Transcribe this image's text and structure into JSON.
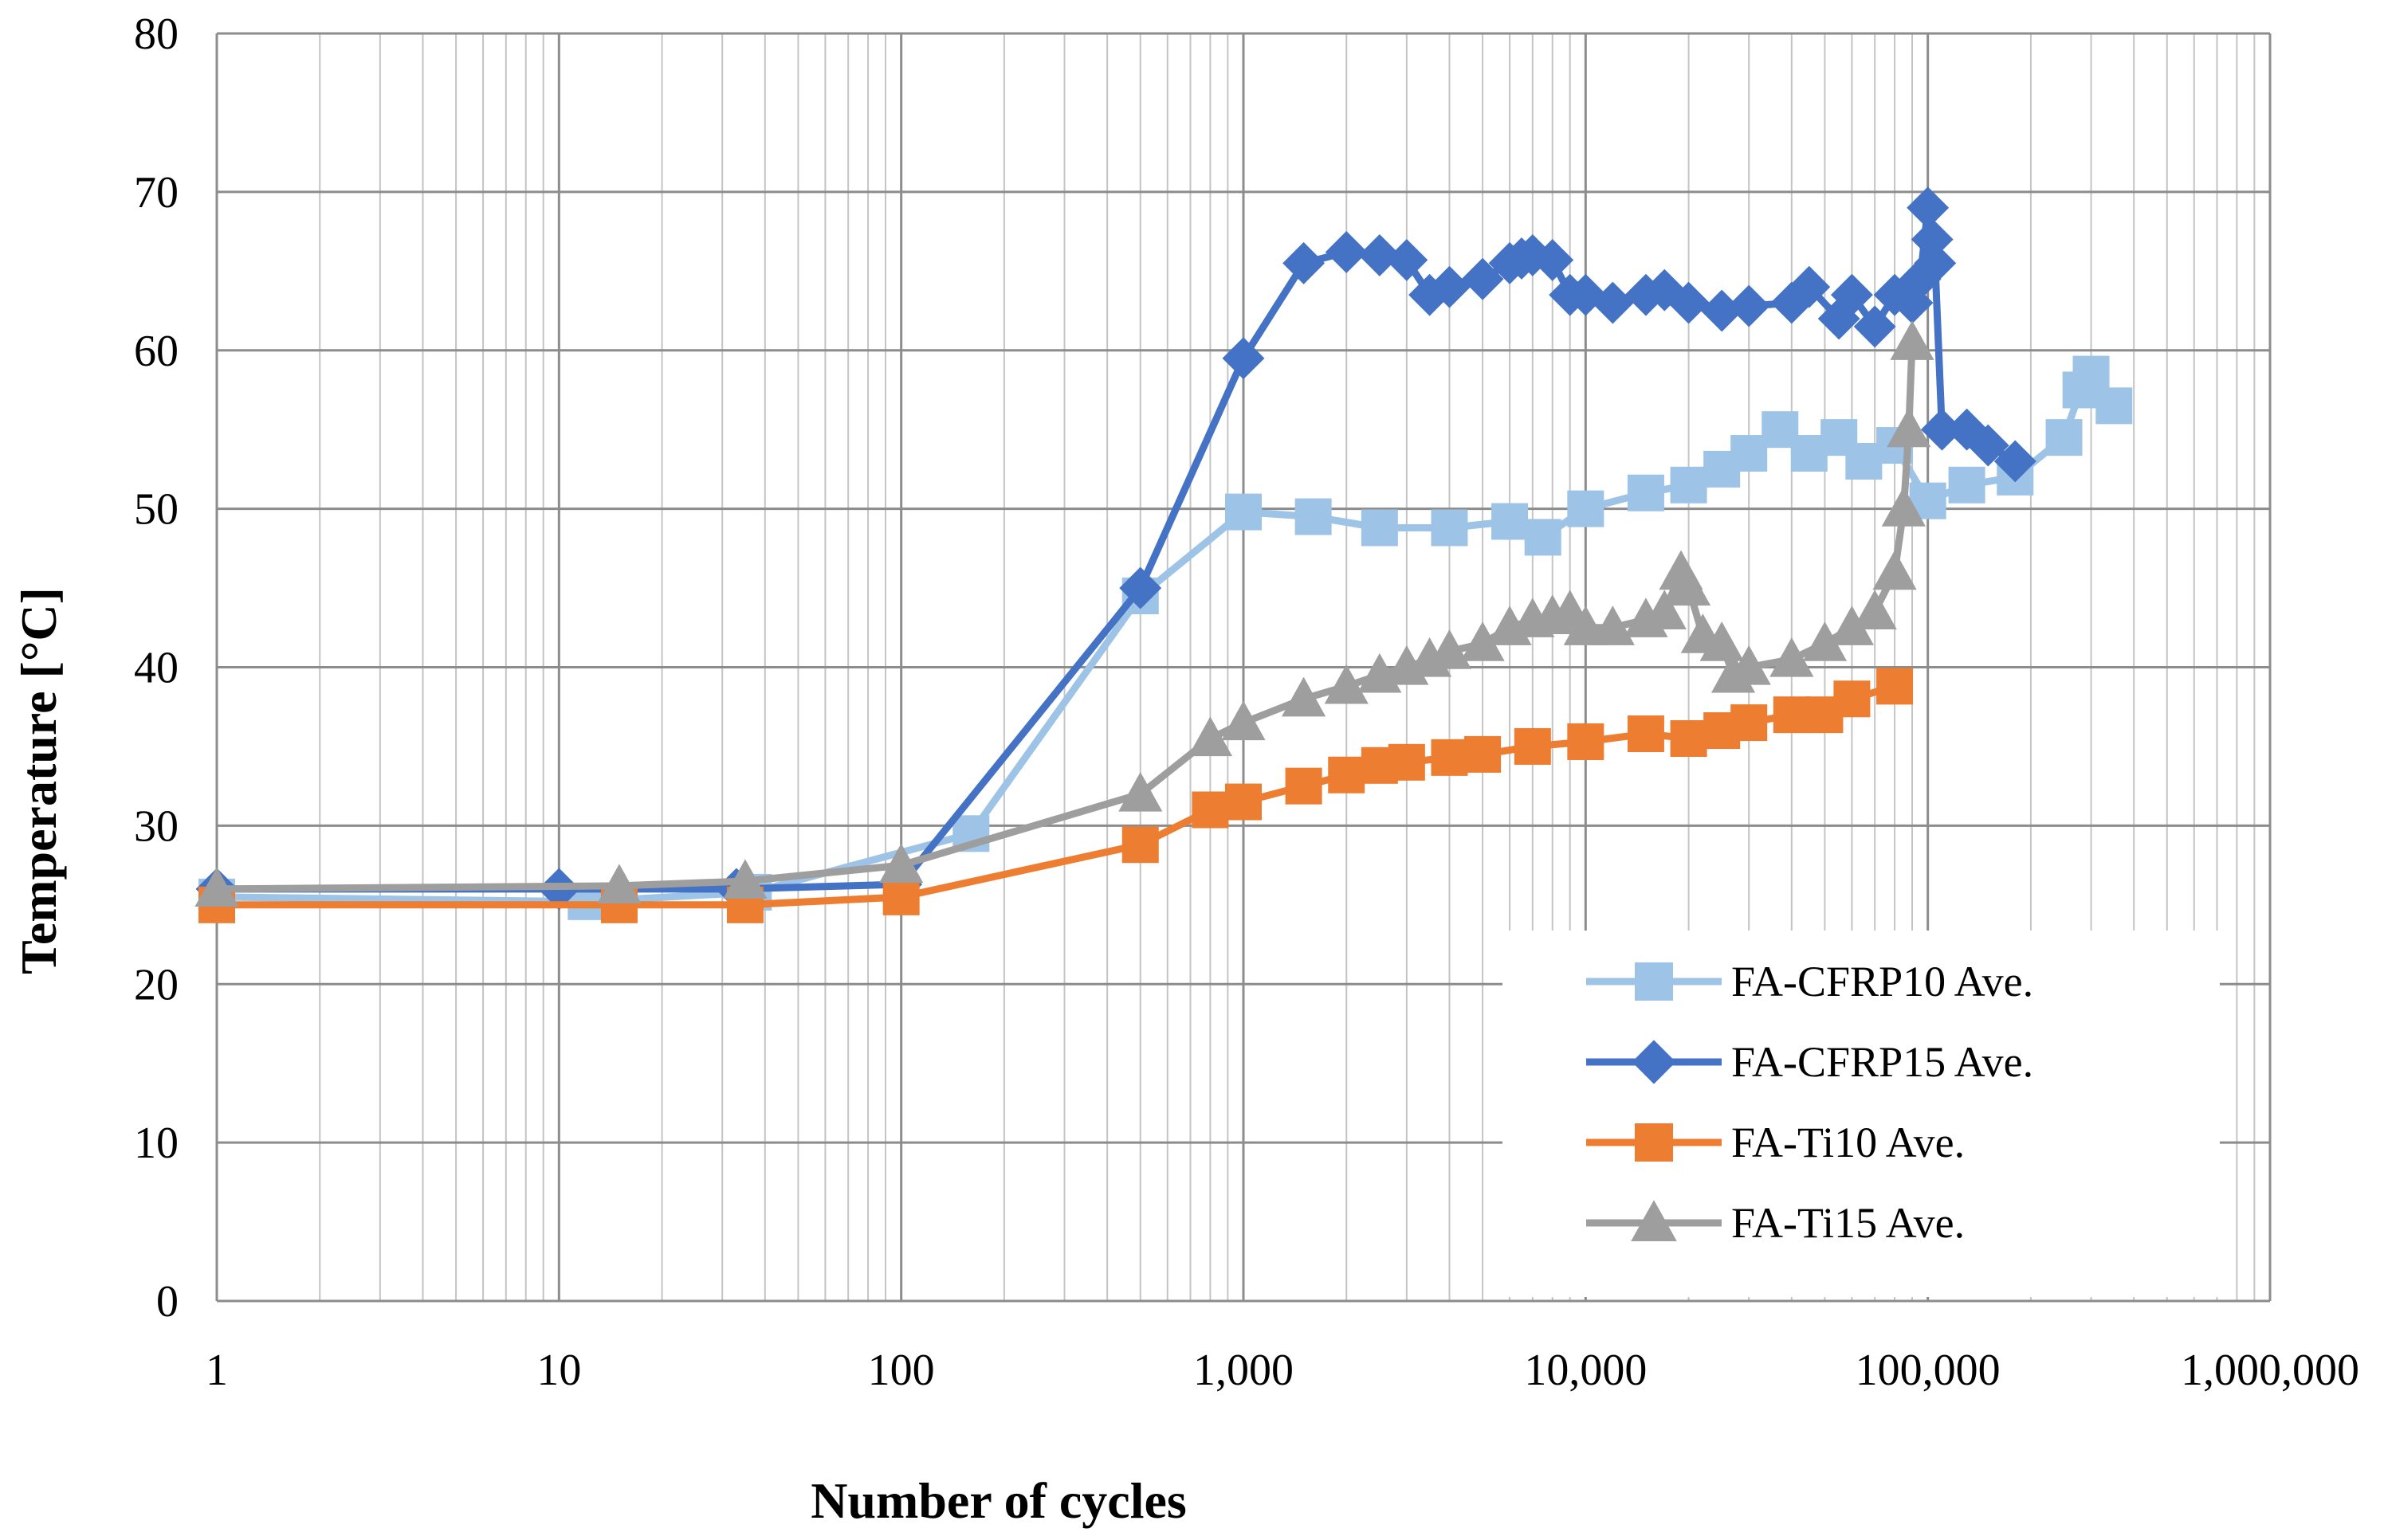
{
  "chart_data": {
    "type": "line",
    "title": "",
    "xlabel": "Number of cycles",
    "ylabel": "Temperature [°C]",
    "x_scale": "log",
    "xlim": [
      1,
      1000000
    ],
    "ylim": [
      0,
      80
    ],
    "grid": true,
    "legend_position": "bottom-right",
    "x_tick_values": [
      1,
      10,
      100,
      1000,
      10000,
      100000,
      1000000
    ],
    "x_tick_labels": [
      "1",
      "10",
      "100",
      "1,000",
      "10,000",
      "100,000",
      "1,000,000"
    ],
    "y_tick_values": [
      0,
      10,
      20,
      30,
      40,
      50,
      60,
      70,
      80
    ],
    "y_tick_labels": [
      "0",
      "10",
      "20",
      "30",
      "40",
      "50",
      "60",
      "70",
      "80"
    ],
    "series": [
      {
        "name": "FA-CFRP10 Ave.",
        "color": "#9dc3e6",
        "marker": "square",
        "x": [
          1,
          12,
          37,
          160,
          500,
          1000,
          1600,
          2500,
          4000,
          6000,
          7500,
          10000,
          15000,
          20000,
          25000,
          30000,
          37000,
          45000,
          55000,
          65000,
          80000,
          100000,
          130000,
          180000,
          250000,
          280000,
          300000,
          350000
        ],
        "y": [
          25.5,
          25.2,
          25.8,
          29.5,
          44.5,
          49.8,
          49.5,
          48.8,
          48.8,
          49.2,
          48.2,
          50.0,
          51.0,
          51.5,
          52.5,
          53.5,
          55.0,
          53.5,
          54.5,
          53.0,
          54.0,
          50.5,
          51.5,
          52.0,
          54.5,
          57.5,
          58.5,
          56.5
        ]
      },
      {
        "name": "FA-CFRP15 Ave.",
        "color": "#4472c4",
        "marker": "diamond",
        "x": [
          1,
          10,
          33,
          100,
          500,
          1000,
          1500,
          2000,
          2500,
          3000,
          3500,
          4000,
          5000,
          6000,
          6500,
          7000,
          8000,
          9000,
          10000,
          12000,
          15000,
          17000,
          20000,
          25000,
          30000,
          40000,
          45000,
          55000,
          60000,
          70000,
          80000,
          90000,
          95000,
          100000,
          103000,
          105000,
          110000,
          130000,
          150000,
          180000
        ],
        "y": [
          26.0,
          26.0,
          26.0,
          26.3,
          45.0,
          59.5,
          65.5,
          66.2,
          66.0,
          65.7,
          63.5,
          64.0,
          64.5,
          65.5,
          65.8,
          66.0,
          65.7,
          63.5,
          63.5,
          63.0,
          63.5,
          63.8,
          63.0,
          62.5,
          62.8,
          63.0,
          64.0,
          62.0,
          63.5,
          61.5,
          63.5,
          63.0,
          64.5,
          69.0,
          67.0,
          65.5,
          55.0,
          55.0,
          54.0,
          53.0
        ]
      },
      {
        "name": "FA-Ti10 Ave.",
        "color": "#ed7d31",
        "marker": "square",
        "x": [
          1,
          15,
          35,
          100,
          500,
          800,
          1000,
          1500,
          2000,
          2500,
          3000,
          4000,
          5000,
          7000,
          10000,
          15000,
          20000,
          25000,
          30000,
          40000,
          50000,
          60000,
          80000
        ],
        "y": [
          25.0,
          25.0,
          25.0,
          25.5,
          28.8,
          31.0,
          31.5,
          32.5,
          33.2,
          33.8,
          34.0,
          34.3,
          34.5,
          35.0,
          35.3,
          35.8,
          35.5,
          36.0,
          36.5,
          37.0,
          37.0,
          38.0,
          38.8
        ]
      },
      {
        "name": "FA-Ti15 Ave.",
        "color": "#9e9e9e",
        "marker": "triangle",
        "x": [
          1,
          15,
          35,
          100,
          500,
          800,
          1000,
          1500,
          2000,
          2500,
          3000,
          3500,
          4000,
          5000,
          6000,
          7000,
          8000,
          9000,
          10000,
          12000,
          15000,
          17000,
          19000,
          20000,
          22000,
          25000,
          27000,
          30000,
          40000,
          50000,
          60000,
          70000,
          80000,
          85000,
          88000,
          90000
        ],
        "y": [
          26.0,
          26.2,
          26.5,
          27.5,
          32.0,
          35.5,
          36.5,
          38.0,
          38.8,
          39.5,
          40.0,
          40.5,
          41.0,
          41.5,
          42.5,
          43.0,
          43.2,
          43.5,
          42.5,
          42.5,
          43.0,
          43.5,
          46.0,
          45.0,
          42.0,
          41.5,
          39.5,
          40.0,
          40.5,
          41.5,
          42.5,
          43.5,
          46.0,
          50.0,
          55.0,
          60.5
        ]
      }
    ]
  }
}
